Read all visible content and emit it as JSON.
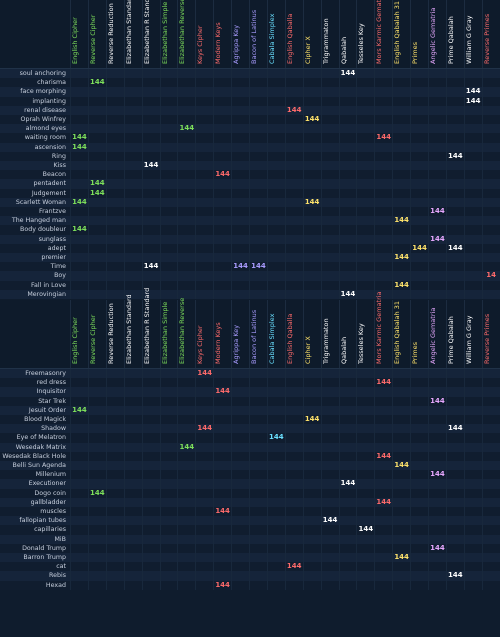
{
  "columns": [
    {
      "label": "English Cipher",
      "color": "#7ee05b"
    },
    {
      "label": "Reverse Cipher",
      "color": "#7ee05b"
    },
    {
      "label": "Reverse Reduction",
      "color": "#ffffff"
    },
    {
      "label": "Elizabethan Standard",
      "color": "#ffffff"
    },
    {
      "label": "Elizabethan R Standard",
      "color": "#ffffff"
    },
    {
      "label": "Elizabethan Simple",
      "color": "#7ee05b"
    },
    {
      "label": "Elizabethan Reverse",
      "color": "#7ee05b"
    },
    {
      "label": "Keys Cipher",
      "color": "#ff6b6b"
    },
    {
      "label": "Modern Keys",
      "color": "#ff6b6b"
    },
    {
      "label": "Agrippa Key",
      "color": "#a99cff"
    },
    {
      "label": "Bacon of Latinus",
      "color": "#a99cff"
    },
    {
      "label": "Cabala Simplex",
      "color": "#6ae0ff"
    },
    {
      "label": "English Qaballa",
      "color": "#ff6b6b"
    },
    {
      "label": "Cipher X",
      "color": "#ffe36b"
    },
    {
      "label": "Trigrammaton",
      "color": "#ffffff"
    },
    {
      "label": "Qabalah",
      "color": "#ffffff"
    },
    {
      "label": "Tesseles Key",
      "color": "#ffffff"
    },
    {
      "label": "Mors Karmic Gematria",
      "color": "#ff6b6b"
    },
    {
      "label": "English Qabalah 31",
      "color": "#ffe36b"
    },
    {
      "label": "Primes",
      "color": "#ffe36b"
    },
    {
      "label": "Angelic Gematria",
      "color": "#e7a8ff"
    },
    {
      "label": "Prime Qabalah",
      "color": "#ffffff"
    },
    {
      "label": "William G Gray",
      "color": "#ffffff"
    },
    {
      "label": "Reverse Primes",
      "color": "#ff6b6b"
    }
  ],
  "section1": [
    {
      "label": "soul anchoring",
      "hits": [
        {
          "col": 15,
          "value": "144"
        }
      ]
    },
    {
      "label": "charisma",
      "hits": [
        {
          "col": 1,
          "value": "144"
        }
      ]
    },
    {
      "label": "face morphing",
      "hits": [
        {
          "col": 22,
          "value": "144"
        }
      ]
    },
    {
      "label": "implanting",
      "hits": [
        {
          "col": 22,
          "value": "144"
        }
      ]
    },
    {
      "label": "renal  disease",
      "hits": [
        {
          "col": 12,
          "value": "144"
        }
      ]
    },
    {
      "label": "Oprah  Winfrey",
      "hits": [
        {
          "col": 13,
          "value": "144"
        }
      ]
    },
    {
      "label": "almond   eyes",
      "hits": [
        {
          "col": 6,
          "value": "144"
        }
      ]
    },
    {
      "label": "waiting   room",
      "hits": [
        {
          "col": 0,
          "value": "144"
        },
        {
          "col": 17,
          "value": "144"
        }
      ]
    },
    {
      "label": "ascension",
      "hits": [
        {
          "col": 0,
          "value": "144"
        }
      ]
    },
    {
      "label": "Ring",
      "hits": [
        {
          "col": 21,
          "value": "144"
        }
      ]
    },
    {
      "label": "Kiss",
      "hits": [
        {
          "col": 4,
          "value": "144"
        }
      ]
    },
    {
      "label": "Beacon",
      "hits": [
        {
          "col": 8,
          "value": "144"
        }
      ]
    },
    {
      "label": "pentadent",
      "hits": [
        {
          "col": 1,
          "value": "144"
        }
      ]
    },
    {
      "label": "Judgement",
      "hits": [
        {
          "col": 1,
          "value": "144"
        }
      ]
    },
    {
      "label": "Scarlett  Woman",
      "hits": [
        {
          "col": 0,
          "value": "144"
        },
        {
          "col": 13,
          "value": "144"
        }
      ]
    },
    {
      "label": "Frantzve",
      "hits": [
        {
          "col": 20,
          "value": "144"
        }
      ]
    },
    {
      "label": "The Hanged  man",
      "hits": [
        {
          "col": 18,
          "value": "144"
        }
      ]
    },
    {
      "label": "Body  doubleur",
      "hits": [
        {
          "col": 0,
          "value": "144"
        }
      ]
    },
    {
      "label": "sunglass",
      "hits": [
        {
          "col": 20,
          "value": "144"
        }
      ]
    },
    {
      "label": "adept",
      "hits": [
        {
          "col": 19,
          "value": "144"
        },
        {
          "col": 21,
          "value": "144"
        }
      ]
    },
    {
      "label": "premier",
      "hits": [
        {
          "col": 18,
          "value": "144"
        }
      ]
    },
    {
      "label": "Time",
      "hits": [
        {
          "col": 4,
          "value": "144"
        },
        {
          "col": 9,
          "value": "144"
        },
        {
          "col": 10,
          "value": "144"
        }
      ]
    },
    {
      "label": "Boy",
      "hits": [
        {
          "col": 23,
          "value": "14"
        }
      ]
    },
    {
      "label": "Fall in  Love",
      "hits": [
        {
          "col": 18,
          "value": "144"
        }
      ]
    },
    {
      "label": "Merovingian",
      "hits": [
        {
          "col": 15,
          "value": "144"
        }
      ]
    }
  ],
  "section2": [
    {
      "label": "Freemasonry",
      "hits": [
        {
          "col": 7,
          "value": "144"
        }
      ]
    },
    {
      "label": "red  dress",
      "hits": [
        {
          "col": 17,
          "value": "144"
        }
      ]
    },
    {
      "label": "Inquisitor",
      "hits": [
        {
          "col": 8,
          "value": "144"
        }
      ]
    },
    {
      "label": "Star  Trek",
      "hits": [
        {
          "col": 20,
          "value": "144"
        }
      ]
    },
    {
      "label": "Jesuit  Order",
      "hits": [
        {
          "col": 0,
          "value": "144"
        }
      ]
    },
    {
      "label": "Blood  Magick",
      "hits": [
        {
          "col": 13,
          "value": "144"
        }
      ]
    },
    {
      "label": "Shadow",
      "hits": [
        {
          "col": 7,
          "value": "144"
        },
        {
          "col": 21,
          "value": "144"
        }
      ]
    },
    {
      "label": "Eye of Melatron",
      "hits": [
        {
          "col": 11,
          "value": "144"
        }
      ]
    },
    {
      "label": "Wesedak  Matrix",
      "hits": [
        {
          "col": 6,
          "value": "144"
        }
      ]
    },
    {
      "label": "Wesedak  Black Hole",
      "hits": [
        {
          "col": 17,
          "value": "144"
        }
      ]
    },
    {
      "label": "Belli Sun Agenda",
      "hits": [
        {
          "col": 18,
          "value": "144"
        }
      ]
    },
    {
      "label": "Millenium",
      "hits": [
        {
          "col": 20,
          "value": "144"
        }
      ]
    },
    {
      "label": "Executioner",
      "hits": [
        {
          "col": 15,
          "value": "144"
        }
      ]
    },
    {
      "label": "Dogo  coin",
      "hits": [
        {
          "col": 1,
          "value": "144"
        }
      ]
    },
    {
      "label": "gallbladder",
      "hits": [
        {
          "col": 17,
          "value": "144"
        }
      ]
    },
    {
      "label": "muscles",
      "hits": [
        {
          "col": 8,
          "value": "144"
        }
      ]
    },
    {
      "label": "fallopian  tubes",
      "hits": [
        {
          "col": 14,
          "value": "144"
        }
      ]
    },
    {
      "label": "capillaries",
      "hits": [
        {
          "col": 16,
          "value": "144"
        }
      ]
    },
    {
      "label": "MiB",
      "hits": []
    },
    {
      "label": "Donald  Trump",
      "hits": [
        {
          "col": 20,
          "value": "144"
        }
      ]
    },
    {
      "label": "Barron  Trump",
      "hits": [
        {
          "col": 18,
          "value": "144"
        }
      ]
    },
    {
      "label": "cat",
      "hits": [
        {
          "col": 12,
          "value": "144"
        }
      ]
    },
    {
      "label": "Rebis",
      "hits": [
        {
          "col": 21,
          "value": "144"
        }
      ]
    },
    {
      "label": "Hexad",
      "hits": [
        {
          "col": 8,
          "value": "144"
        }
      ]
    }
  ]
}
